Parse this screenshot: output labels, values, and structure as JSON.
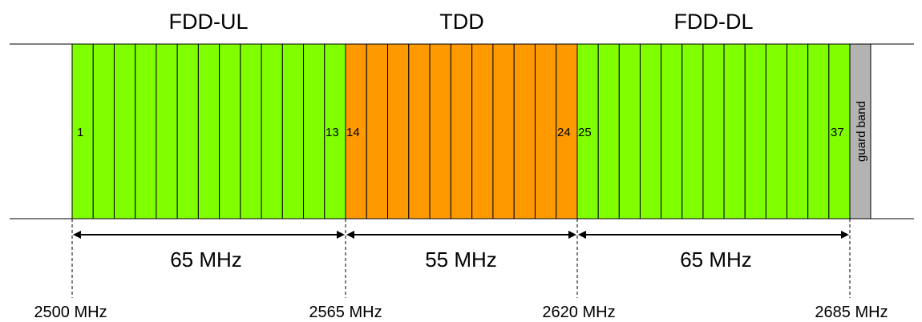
{
  "bands": [
    {
      "title": "FDD-UL",
      "color": "#80ff00",
      "first_channel": "1",
      "last_channel": "13",
      "channel_count": 13,
      "bandwidth": "65 MHz"
    },
    {
      "title": "TDD",
      "color": "#ff9900",
      "first_channel": "14",
      "last_channel": "24",
      "channel_count": 11,
      "bandwidth": "55 MHz"
    },
    {
      "title": "FDD-DL",
      "color": "#80ff00",
      "first_channel": "25",
      "last_channel": "37",
      "channel_count": 13,
      "bandwidth": "65 MHz"
    }
  ],
  "guard_band": {
    "label": "guard band",
    "color": "#b3b3b3"
  },
  "frequencies": [
    "2500 MHz",
    "2565 MHz",
    "2620 MHz",
    "2685 MHz"
  ]
}
